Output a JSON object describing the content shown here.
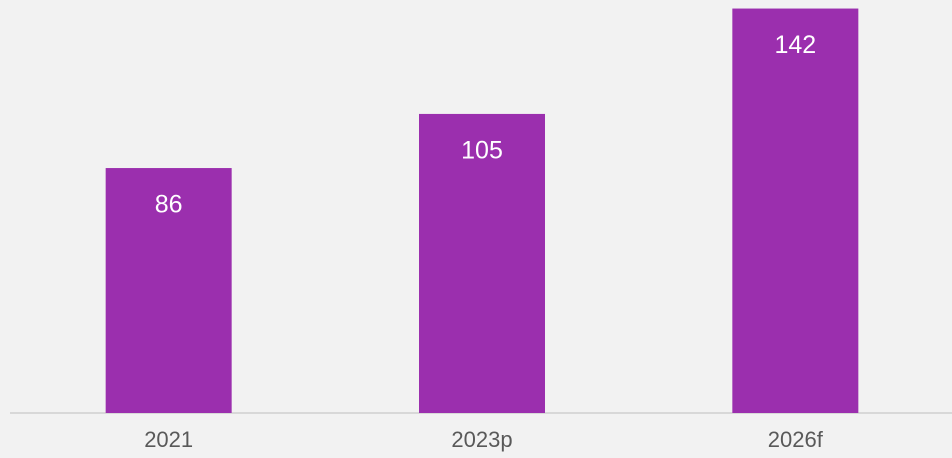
{
  "chart_data": {
    "type": "bar",
    "categories": [
      "2021",
      "2023p",
      "2026f"
    ],
    "values": [
      86,
      105,
      142
    ],
    "color": "#9b2fae",
    "ylim": [
      0,
      145
    ]
  }
}
